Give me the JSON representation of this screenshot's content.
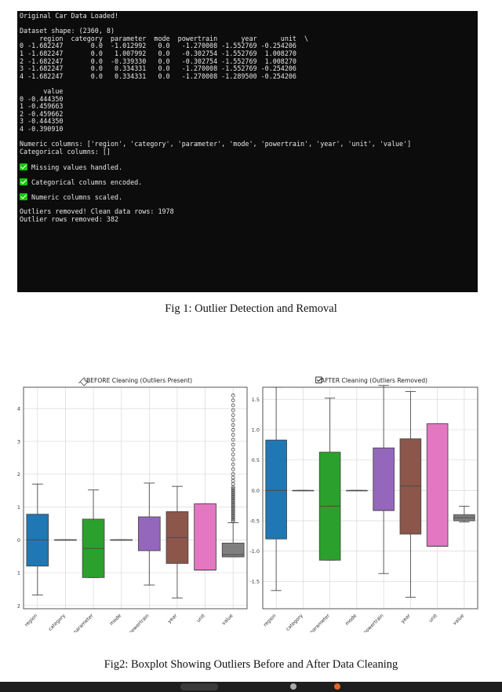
{
  "terminal": {
    "lines": [
      "Original Car Data Loaded!",
      "",
      "Dataset shape: (2360, 8)",
      "     region  category  parameter  mode  powertrain      year      unit  \\",
      "0 -1.682247       0.0  -1.012992   0.0   -1.270008 -1.552769 -0.254206",
      "1 -1.682247       0.0   1.007992   0.0   -0.302754 -1.552769  1.008270",
      "2 -1.682247       0.0  -0.339330   0.0   -0.302754 -1.552769  1.008270",
      "3 -1.682247       0.0   0.334331   0.0   -1.270008 -1.552769 -0.254206",
      "4 -1.682247       0.0   0.334331   0.0   -1.270008 -1.289500 -0.254206",
      "",
      "      value",
      "0 -0.444350",
      "1 -0.459663",
      "2 -0.459662",
      "3 -0.444350",
      "4 -0.390910",
      "",
      "Numeric columns: ['region', 'category', 'parameter', 'mode', 'powertrain', 'year', 'unit', 'value']",
      "Categorical columns: []",
      "",
      "{check} Missing values handled.",
      "",
      "{check} Categorical columns encoded.",
      "",
      "{check} Numeric columns scaled.",
      "",
      "Outliers removed! Clean data rows: 1978",
      "Outlier rows removed: 382"
    ]
  },
  "captions": {
    "fig1": "Fig 1: Outlier Detection and Removal",
    "fig2": "Fig2: Boxplot Showing Outliers Before and After Data Cleaning"
  },
  "chart_data": [
    {
      "type": "box",
      "title": "BEFORE Cleaning (Outliers Present)",
      "title_icon": "pin-icon",
      "categories": [
        "region",
        "category",
        "parameter",
        "mode",
        "powertrain",
        "year",
        "unit",
        "value"
      ],
      "ylim": [
        -2.1,
        4.65
      ],
      "yticks": [
        -2,
        -1,
        0,
        1,
        2,
        3,
        4
      ],
      "grid": true,
      "boxes": [
        {
          "whislo": -1.68,
          "q1": -0.8,
          "med": 0.0,
          "q3": 0.78,
          "whishi": 1.7,
          "color": "#1f77b4"
        },
        {
          "whislo": 0.0,
          "q1": 0.0,
          "med": 0.0,
          "q3": 0.0,
          "whishi": 0.0,
          "color": "#ff7f0e"
        },
        {
          "whislo": -1.15,
          "q1": -1.15,
          "med": -0.26,
          "q3": 0.63,
          "whishi": 1.52,
          "color": "#2ca02c"
        },
        {
          "whislo": 0.0,
          "q1": 0.0,
          "med": 0.0,
          "q3": 0.0,
          "whishi": 0.0,
          "color": "#d62728"
        },
        {
          "whislo": -1.38,
          "q1": -0.33,
          "med": -0.33,
          "q3": 0.7,
          "whishi": 1.73,
          "color": "#9467bd"
        },
        {
          "whislo": -1.77,
          "q1": -0.72,
          "med": 0.07,
          "q3": 0.86,
          "whishi": 1.63,
          "color": "#8c564b"
        },
        {
          "whislo": -0.92,
          "q1": -0.92,
          "med": -0.92,
          "q3": 1.1,
          "whishi": 1.1,
          "color": "#e377c2"
        },
        {
          "whislo": -0.52,
          "q1": -0.52,
          "med": -0.45,
          "q3": -0.1,
          "whishi": 0.52,
          "color": "#7f7f7f"
        }
      ],
      "outliers": [
        {
          "category": "value",
          "values": [
            0.56,
            0.6,
            0.64,
            0.68,
            0.72,
            0.76,
            0.8,
            0.84,
            0.88,
            0.92,
            0.96,
            1.0,
            1.04,
            1.08,
            1.12,
            1.16,
            1.2,
            1.24,
            1.28,
            1.32,
            1.36,
            1.4,
            1.44,
            1.48,
            1.52,
            1.56,
            1.6,
            1.7,
            1.8,
            1.9,
            2.0,
            2.15,
            2.3,
            2.45,
            2.6,
            2.75,
            2.9,
            3.05,
            3.2,
            3.35,
            3.5,
            3.65,
            3.8,
            3.95,
            4.1,
            4.25,
            4.4
          ]
        }
      ]
    },
    {
      "type": "box",
      "title": "AFTER Cleaning (Outliers Removed)",
      "title_icon": "checkbox-icon",
      "categories": [
        "region",
        "category",
        "parameter",
        "mode",
        "powertrain",
        "year",
        "unit",
        "value"
      ],
      "ylim": [
        -1.95,
        1.7
      ],
      "yticks": [
        -1.5,
        -1.0,
        -0.5,
        0.0,
        0.5,
        1.0,
        1.5
      ],
      "grid": true,
      "boxes": [
        {
          "whislo": -1.65,
          "q1": -0.8,
          "med": 0.0,
          "q3": 0.83,
          "whishi": 1.7,
          "color": "#1f77b4"
        },
        {
          "whislo": 0.0,
          "q1": 0.0,
          "med": 0.0,
          "q3": 0.0,
          "whishi": 0.0,
          "color": "#ff7f0e"
        },
        {
          "whislo": -1.15,
          "q1": -1.15,
          "med": -0.26,
          "q3": 0.63,
          "whishi": 1.52,
          "color": "#2ca02c"
        },
        {
          "whislo": 0.0,
          "q1": 0.0,
          "med": 0.0,
          "q3": 0.0,
          "whishi": 0.0,
          "color": "#d62728"
        },
        {
          "whislo": -1.37,
          "q1": -0.33,
          "med": -0.33,
          "q3": 0.7,
          "whishi": 1.73,
          "color": "#9467bd"
        },
        {
          "whislo": -1.76,
          "q1": -0.72,
          "med": 0.07,
          "q3": 0.85,
          "whishi": 1.63,
          "color": "#8c564b"
        },
        {
          "whislo": -0.92,
          "q1": -0.92,
          "med": -0.92,
          "q3": 1.1,
          "whishi": 1.1,
          "color": "#e377c2"
        },
        {
          "whislo": -0.52,
          "q1": -0.5,
          "med": -0.45,
          "q3": -0.4,
          "whishi": -0.26,
          "color": "#7f7f7f"
        }
      ],
      "outliers": []
    }
  ]
}
